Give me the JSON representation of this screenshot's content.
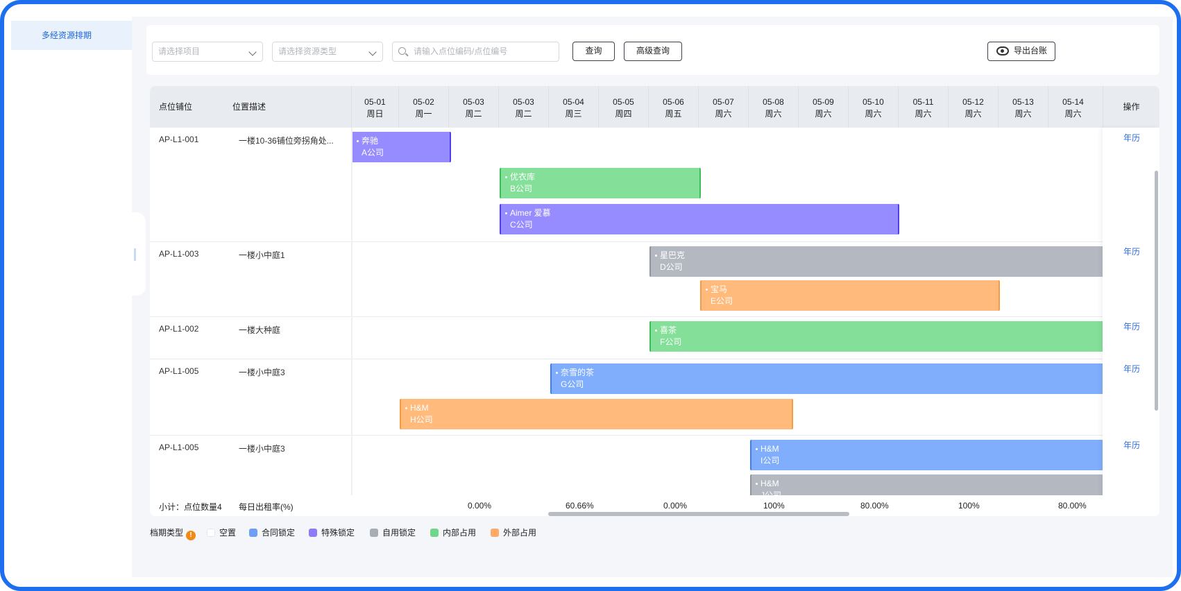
{
  "sidebar": {
    "active_item": "多经资源排期"
  },
  "filters": {
    "project_placeholder": "请选择项目",
    "type_placeholder": "请选择资源类型",
    "search_placeholder": "请输入点位编码/点位编号",
    "query_label": "查询",
    "advanced_label": "高级查询",
    "export_label": "导出台账"
  },
  "header": {
    "col_code": "点位铺位",
    "col_desc": "位置描述",
    "col_op": "操作",
    "dates": [
      {
        "date": "05-01",
        "week": "周日"
      },
      {
        "date": "05-02",
        "week": "周一"
      },
      {
        "date": "05-03",
        "week": "周二"
      },
      {
        "date": "05-03",
        "week": "周二"
      },
      {
        "date": "05-04",
        "week": "周三"
      },
      {
        "date": "05-05",
        "week": "周四"
      },
      {
        "date": "05-06",
        "week": "周五"
      },
      {
        "date": "05-07",
        "week": "周六"
      },
      {
        "date": "05-08",
        "week": "周六"
      },
      {
        "date": "05-09",
        "week": "周六"
      },
      {
        "date": "05-10",
        "week": "周六"
      },
      {
        "date": "05-11",
        "week": "周六"
      },
      {
        "date": "05-12",
        "week": "周六"
      },
      {
        "date": "05-13",
        "week": "周六"
      },
      {
        "date": "05-14",
        "week": "周六"
      }
    ]
  },
  "rows": [
    {
      "code": "AP-L1-001",
      "desc": "一楼10-36铺位旁拐角处...",
      "op": "年历"
    },
    {
      "code": "AP-L1-003",
      "desc": "一楼小中庭1",
      "op": "年历"
    },
    {
      "code": "AP-L1-002",
      "desc": "一楼大种庭",
      "op": "年历"
    },
    {
      "code": "AP-L1-005",
      "desc": "一楼小中庭3",
      "op": "年历"
    },
    {
      "code": "AP-L1-005",
      "desc": "一楼小中庭3",
      "op": "年历"
    }
  ],
  "bookings": [
    {
      "brand": "奔驰",
      "company": "A公司",
      "type": "特殊锁定"
    },
    {
      "brand": "优衣库",
      "company": "B公司",
      "type": "内部占用"
    },
    {
      "brand": "Aimer 爱慕",
      "company": "C公司",
      "type": "特殊锁定"
    },
    {
      "brand": "星巴克",
      "company": "D公司",
      "type": "自用锁定"
    },
    {
      "brand": "宝马",
      "company": "E公司",
      "type": "外部占用"
    },
    {
      "brand": "喜茶",
      "company": "F公司",
      "type": "内部占用"
    },
    {
      "brand": "奈雪的茶",
      "company": "G公司",
      "type": "合同锁定"
    },
    {
      "brand": "H&M",
      "company": "H公司",
      "type": "外部占用"
    },
    {
      "brand": "H&M",
      "company": "I公司",
      "type": "合同锁定"
    },
    {
      "brand": "H&M",
      "company": "J公司",
      "type": "自用锁定"
    }
  ],
  "footer": {
    "subtotal": "小计：点位数量4",
    "rate_label": "每日出租率(%)",
    "rates": [
      "0.00%",
      "60.66%",
      "0.00%",
      "100%",
      "80.00%",
      "100%",
      "80.00%"
    ]
  },
  "legend": {
    "title": "档期类型",
    "warn": "!",
    "items": [
      {
        "label": "空置",
        "color": "#ffffff"
      },
      {
        "label": "合同锁定",
        "color": "#6f9ef5"
      },
      {
        "label": "特殊锁定",
        "color": "#8a7cf7"
      },
      {
        "label": "自用锁定",
        "color": "#a7acb5"
      },
      {
        "label": "内部占用",
        "color": "#72d58a"
      },
      {
        "label": "外部占用",
        "color": "#ffaa66"
      }
    ]
  }
}
